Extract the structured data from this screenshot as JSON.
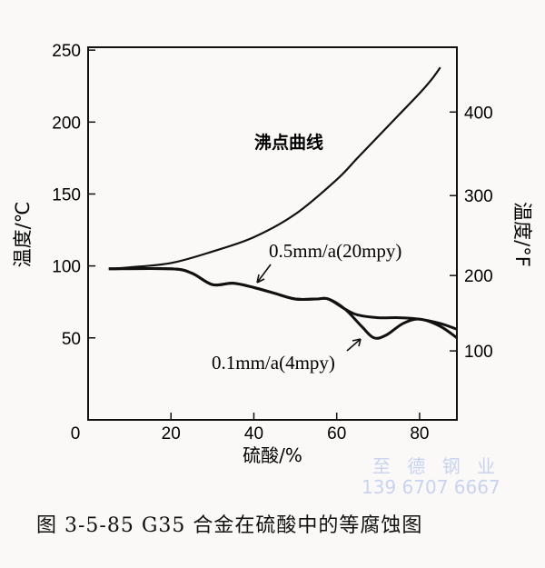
{
  "chart_data": {
    "type": "line",
    "xlabel": "硫酸/%",
    "ylabel": "温度/℃",
    "ylabel_right": "温度/°F",
    "xlim": [
      0,
      89
    ],
    "ylim": [
      -7,
      252
    ],
    "x_ticks": [
      0,
      20,
      40,
      60,
      80
    ],
    "y_ticks": [
      50,
      100,
      150,
      200,
      250
    ],
    "y_right_ticks": [
      100,
      200,
      300,
      400
    ],
    "grid": false,
    "series": [
      {
        "name": "沸点曲线",
        "x": [
          5,
          10,
          20,
          30,
          40,
          50,
          60,
          65,
          70,
          75,
          80,
          83,
          85
        ],
        "y": [
          98,
          99,
          102,
          110,
          120,
          136,
          160,
          175,
          190,
          205,
          220,
          230,
          238
        ]
      },
      {
        "name": "0.5mm/a(20mpy)",
        "x": [
          5,
          20,
          25,
          30,
          35,
          40,
          45,
          50,
          55,
          58,
          62,
          65,
          70,
          75,
          80,
          85,
          89
        ],
        "y": [
          98,
          98,
          95,
          87,
          88,
          85,
          81,
          77,
          77,
          77,
          70,
          66,
          64,
          64,
          63,
          60,
          56
        ]
      },
      {
        "name": "0.1mm/a(4mpy)",
        "x": [
          5,
          20,
          25,
          30,
          35,
          40,
          45,
          50,
          55,
          58,
          62,
          66,
          69,
          72,
          76,
          80,
          85,
          89
        ],
        "y": [
          98,
          98,
          95,
          87,
          88,
          85,
          81,
          77,
          77,
          77,
          70,
          58,
          50,
          52,
          60,
          63,
          58,
          50
        ]
      }
    ]
  },
  "caption": "图 3-5-85    G35 合金在硫酸中的等腐蚀图",
  "watermark": {
    "line1": "至 德 钢 业",
    "line2": "139 6707 6667"
  }
}
